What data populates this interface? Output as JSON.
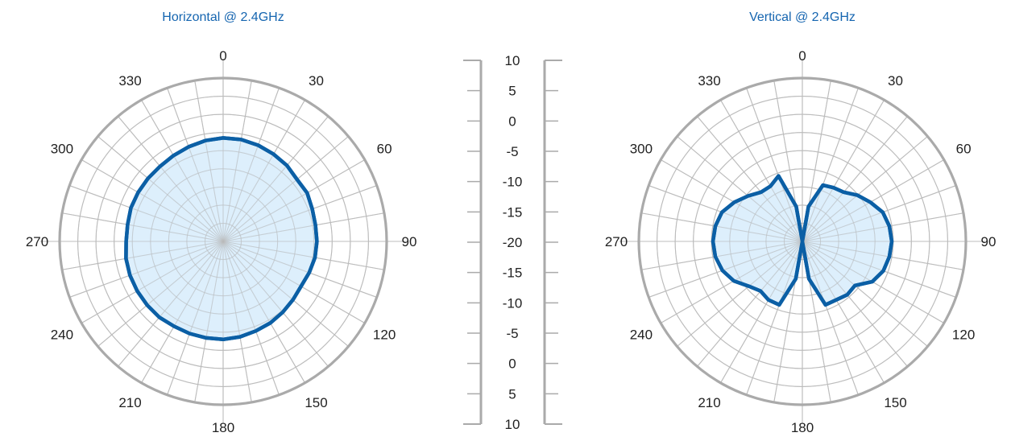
{
  "chart_data": [
    {
      "type": "polar",
      "title": "Horizontal @ 2.4GHz",
      "angle_labels": [
        "0",
        "30",
        "60",
        "90",
        "120",
        "150",
        "180",
        "210",
        "240",
        "270",
        "300",
        "330"
      ],
      "scale_db": [
        -20,
        10
      ],
      "series": [
        {
          "angles": [
            0,
            10,
            20,
            30,
            40,
            50,
            60,
            70,
            80,
            90,
            100,
            110,
            120,
            130,
            140,
            150,
            160,
            170,
            180,
            190,
            200,
            210,
            220,
            230,
            240,
            250,
            260,
            270,
            280,
            290,
            300,
            310,
            320,
            330,
            340,
            350
          ],
          "values": [
            -1,
            -1,
            -1.2,
            -1.5,
            -1.8,
            -2.3,
            -2.2,
            -2.6,
            -2.8,
            -2.8,
            -2.9,
            -3.2,
            -3.5,
            -3.3,
            -3.0,
            -2.7,
            -2.5,
            -2.2,
            -2.0,
            -2.0,
            -2.0,
            -2.0,
            -1.8,
            -1.8,
            -1.8,
            -1.8,
            -1.9,
            -2.2,
            -2.2,
            -2.0,
            -2.0,
            -2.0,
            -2.0,
            -1.8,
            -1.5,
            -1.2
          ]
        }
      ]
    },
    {
      "type": "polar",
      "title": "Vertical @ 2.4GHz",
      "angle_labels": [
        "0",
        "30",
        "60",
        "90",
        "120",
        "150",
        "180",
        "210",
        "240",
        "270",
        "300",
        "330"
      ],
      "scale_db": [
        -20,
        10
      ],
      "series": [
        {
          "angles": [
            0,
            10,
            20,
            30,
            40,
            50,
            60,
            70,
            80,
            90,
            100,
            110,
            120,
            130,
            140,
            150,
            160,
            170,
            180,
            190,
            200,
            210,
            220,
            230,
            240,
            250,
            260,
            270,
            280,
            290,
            300,
            310,
            320,
            330,
            340,
            350
          ],
          "values": [
            -20,
            -13.5,
            -9,
            -8.6,
            -8.2,
            -6.8,
            -5.6,
            -4.3,
            -3.8,
            -3.6,
            -3.8,
            -4.2,
            -5.2,
            -7.4,
            -7.2,
            -7.6,
            -7.6,
            -13,
            -20,
            -13,
            -7.6,
            -7.6,
            -8.1,
            -7.2,
            -5.5,
            -4.4,
            -3.8,
            -3.6,
            -3.8,
            -4.3,
            -5.6,
            -7,
            -8.2,
            -8.3,
            -7.2,
            -13.5
          ]
        }
      ]
    }
  ],
  "scale_labels": [
    "10",
    "5",
    "0",
    "-5",
    "-10",
    "-15",
    "-20",
    "-15",
    "-10",
    "-5",
    "0",
    "5",
    "10"
  ],
  "colors": {
    "title": "#1565b0",
    "line": "#0b5fa5",
    "fill": "#d4ebfb",
    "grid": "#bcbcbc",
    "ring": "#aaaaaa",
    "text": "#222222"
  }
}
